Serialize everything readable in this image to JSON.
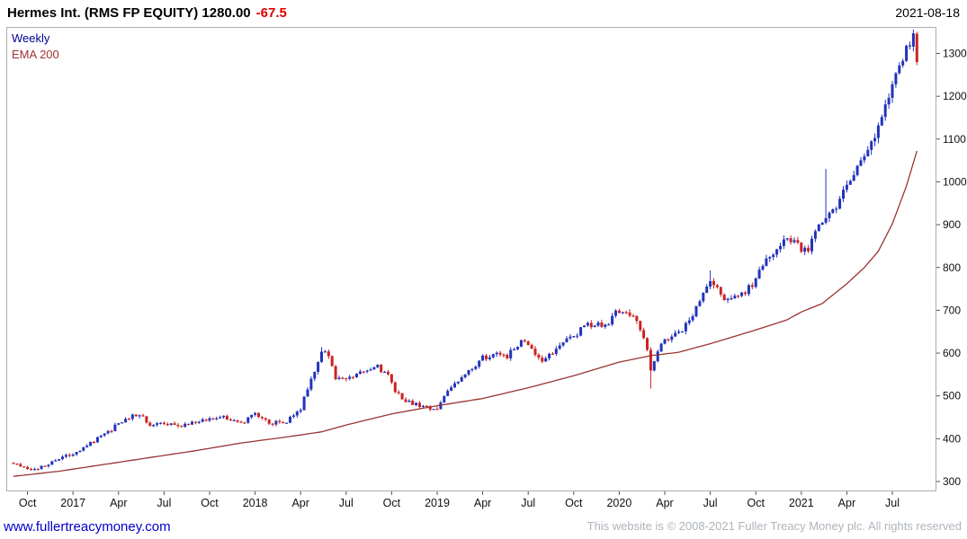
{
  "header": {
    "title": "Hermes Int. (RMS FP EQUITY) 1280.00",
    "change": "-67.5",
    "date": "2021-08-18"
  },
  "legend": {
    "series": "Weekly",
    "ema": "EMA 200"
  },
  "footer": {
    "link": "www.fullertreacymoney.com",
    "copyright": "This website is © 2008-2021 Fuller Treacy Money plc. All rights reserved"
  },
  "colors": {
    "up_candle": "#2233bb",
    "down_candle": "#cc2222",
    "ema_line": "#993333",
    "legend_series": "#000099",
    "legend_ema": "#a03333",
    "change_text": "#dd0000",
    "link": "#0000cc",
    "axis_text": "#111111",
    "plot_border": "#adadad"
  },
  "chart_data": {
    "type": "candlestick",
    "instrument": "Hermes Int. (RMS FP EQUITY)",
    "timeframe": "weekly",
    "last_price": 1280.0,
    "change": -67.5,
    "as_of_date": "2021-08-18",
    "grid": false,
    "legend_position": "top-left",
    "price_axis_side": "right",
    "ylim": [
      300,
      1360
    ],
    "y_ticks": [
      1300,
      1200,
      1100,
      1000,
      900,
      800,
      700,
      600,
      500,
      400,
      300
    ],
    "x_ticks": [
      {
        "label": "Oct",
        "week": 4
      },
      {
        "label": "2017",
        "week": 17
      },
      {
        "label": "Apr",
        "week": 30
      },
      {
        "label": "Jul",
        "week": 43
      },
      {
        "label": "Oct",
        "week": 56
      },
      {
        "label": "2018",
        "week": 69
      },
      {
        "label": "Apr",
        "week": 82
      },
      {
        "label": "Jul",
        "week": 95
      },
      {
        "label": "Oct",
        "week": 108
      },
      {
        "label": "2019",
        "week": 121
      },
      {
        "label": "Apr",
        "week": 134
      },
      {
        "label": "Jul",
        "week": 147
      },
      {
        "label": "Oct",
        "week": 160
      },
      {
        "label": "2020",
        "week": 173
      },
      {
        "label": "Apr",
        "week": 186
      },
      {
        "label": "Jul",
        "week": 199
      },
      {
        "label": "Oct",
        "week": 212
      },
      {
        "label": "2021",
        "week": 225
      },
      {
        "label": "Apr",
        "week": 238
      },
      {
        "label": "Jul",
        "week": 251
      }
    ],
    "weeks_total": 259,
    "close_anchors": [
      [
        0,
        345
      ],
      [
        4,
        331
      ],
      [
        8,
        333
      ],
      [
        13,
        352
      ],
      [
        17,
        366
      ],
      [
        21,
        386
      ],
      [
        26,
        408
      ],
      [
        30,
        436
      ],
      [
        34,
        456
      ],
      [
        37,
        448
      ],
      [
        39,
        428
      ],
      [
        43,
        436
      ],
      [
        47,
        430
      ],
      [
        52,
        441
      ],
      [
        56,
        447
      ],
      [
        60,
        452
      ],
      [
        63,
        440
      ],
      [
        65,
        436
      ],
      [
        69,
        458
      ],
      [
        73,
        434
      ],
      [
        78,
        441
      ],
      [
        82,
        470
      ],
      [
        85,
        540
      ],
      [
        88,
        604
      ],
      [
        90,
        592
      ],
      [
        92,
        545
      ],
      [
        95,
        536
      ],
      [
        99,
        556
      ],
      [
        104,
        567
      ],
      [
        107,
        545
      ],
      [
        109,
        510
      ],
      [
        112,
        487
      ],
      [
        117,
        474
      ],
      [
        121,
        472
      ],
      [
        125,
        519
      ],
      [
        130,
        556
      ],
      [
        134,
        589
      ],
      [
        138,
        601
      ],
      [
        141,
        593
      ],
      [
        143,
        614
      ],
      [
        146,
        632
      ],
      [
        149,
        596
      ],
      [
        151,
        584
      ],
      [
        156,
        616
      ],
      [
        160,
        641
      ],
      [
        164,
        667
      ],
      [
        169,
        664
      ],
      [
        172,
        694
      ],
      [
        175,
        699
      ],
      [
        177,
        681
      ],
      [
        180,
        641
      ],
      [
        182,
        563
      ],
      [
        184,
        601
      ],
      [
        186,
        634
      ],
      [
        190,
        646
      ],
      [
        193,
        672
      ],
      [
        195,
        703
      ],
      [
        197,
        747
      ],
      [
        199,
        772
      ],
      [
        201,
        749
      ],
      [
        203,
        722
      ],
      [
        208,
        736
      ],
      [
        212,
        772
      ],
      [
        216,
        832
      ],
      [
        221,
        866
      ],
      [
        224,
        852
      ],
      [
        227,
        831
      ],
      [
        229,
        889
      ],
      [
        234,
        934
      ],
      [
        238,
        986
      ],
      [
        242,
        1041
      ],
      [
        247,
        1131
      ],
      [
        251,
        1222
      ],
      [
        255,
        1318
      ],
      [
        257,
        1347
      ],
      [
        258,
        1280
      ]
    ],
    "ema_anchors": [
      [
        0,
        312
      ],
      [
        13,
        324
      ],
      [
        26,
        340
      ],
      [
        39,
        356
      ],
      [
        52,
        372
      ],
      [
        65,
        390
      ],
      [
        78,
        404
      ],
      [
        88,
        416
      ],
      [
        95,
        432
      ],
      [
        108,
        458
      ],
      [
        121,
        477
      ],
      [
        134,
        494
      ],
      [
        147,
        519
      ],
      [
        160,
        547
      ],
      [
        173,
        579
      ],
      [
        182,
        594
      ],
      [
        190,
        602
      ],
      [
        199,
        622
      ],
      [
        212,
        654
      ],
      [
        221,
        678
      ],
      [
        225,
        696
      ],
      [
        231,
        716
      ],
      [
        238,
        762
      ],
      [
        243,
        800
      ],
      [
        247,
        838
      ],
      [
        251,
        902
      ],
      [
        255,
        990
      ],
      [
        258,
        1072
      ]
    ],
    "overrides": {
      "88": {
        "high": 614
      },
      "182": {
        "low": 517
      },
      "199": {
        "high": 793
      },
      "232": {
        "high": 1030
      },
      "257": {
        "open": 1316,
        "close": 1347,
        "high": 1356,
        "low": 1305
      },
      "258": {
        "open": 1346,
        "close": 1280,
        "high": 1351,
        "low": 1273
      }
    }
  }
}
